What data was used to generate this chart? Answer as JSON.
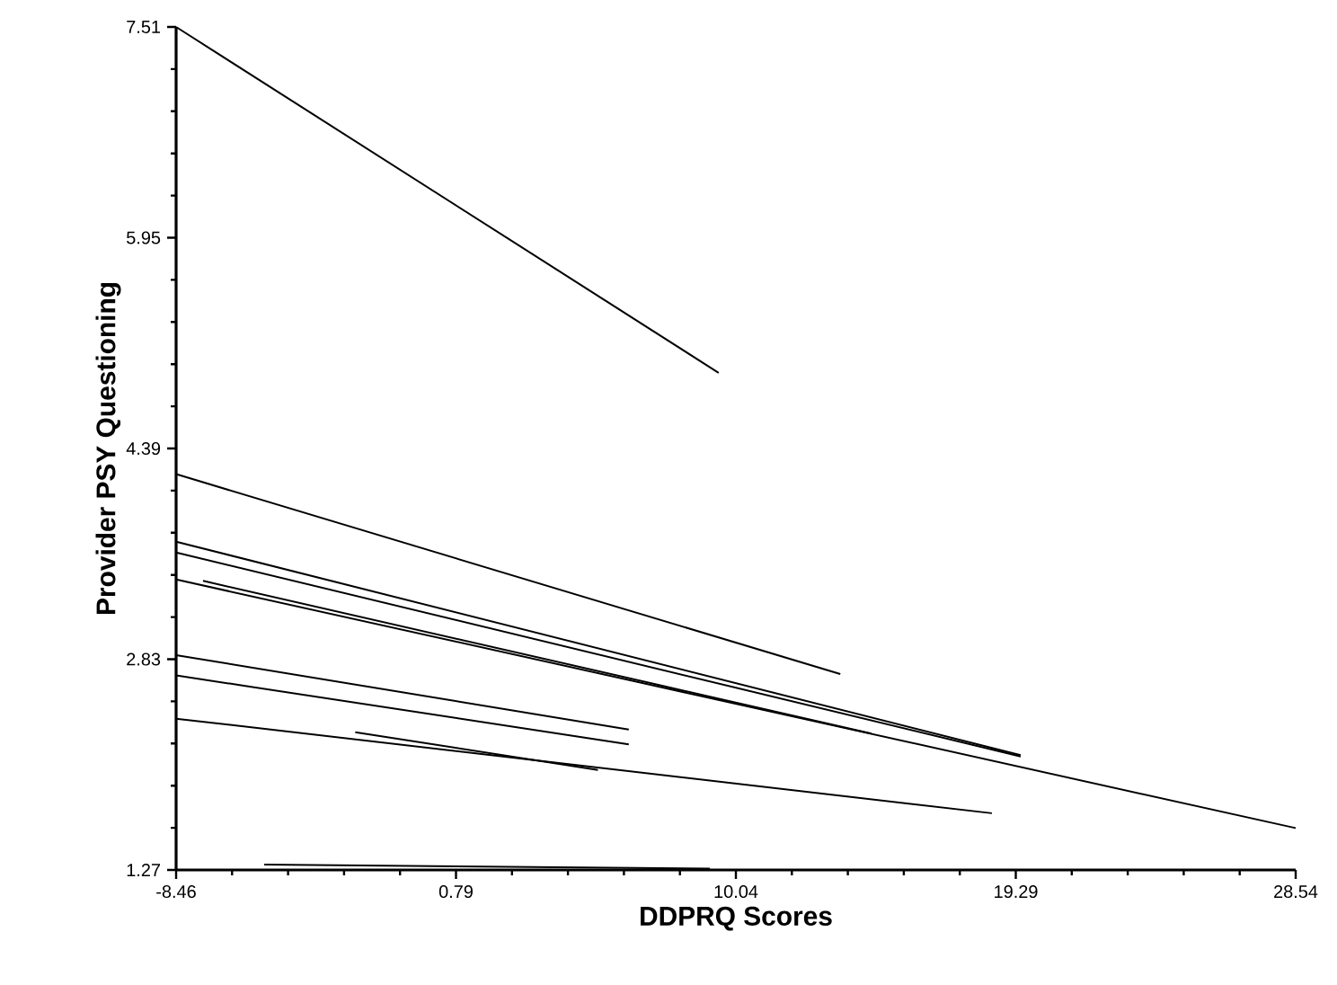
{
  "chart_data": {
    "type": "line",
    "xlabel": "DDPRQ Scores",
    "ylabel": "Provider PSY Questioning",
    "xlim": [
      -8.46,
      28.54
    ],
    "ylim": [
      1.27,
      7.51
    ],
    "xticks": [
      -8.46,
      0.79,
      10.04,
      19.29,
      28.54
    ],
    "yticks": [
      1.27,
      2.83,
      4.39,
      5.95,
      7.51
    ],
    "series": [
      {
        "color": "#000000",
        "x": [
          -8.46,
          9.47
        ],
        "values": [
          7.51,
          4.95
        ]
      },
      {
        "color": "#000000",
        "x": [
          -8.46,
          13.49
        ],
        "values": [
          4.2,
          2.72
        ]
      },
      {
        "color": "#000000",
        "x": [
          -8.46,
          19.45
        ],
        "values": [
          3.7,
          2.12
        ]
      },
      {
        "color": "#000000",
        "x": [
          -8.46,
          19.45
        ],
        "values": [
          3.62,
          2.11
        ]
      },
      {
        "color": "#000000",
        "x": [
          -8.46,
          28.54
        ],
        "values": [
          3.42,
          1.58
        ]
      },
      {
        "color": "#000000",
        "x": [
          -7.57,
          14.52
        ],
        "values": [
          3.41,
          2.28
        ]
      },
      {
        "color": "#000000",
        "x": [
          -8.46,
          6.5
        ],
        "values": [
          2.86,
          2.31
        ]
      },
      {
        "color": "#000000",
        "x": [
          -8.46,
          6.5
        ],
        "values": [
          2.71,
          2.2
        ]
      },
      {
        "color": "#000000",
        "x": [
          -8.46,
          18.5
        ],
        "values": [
          2.39,
          1.69
        ]
      },
      {
        "color": "#000000",
        "x": [
          -2.54,
          5.48
        ],
        "values": [
          2.29,
          2.01
        ]
      },
      {
        "color": "#000000",
        "x": [
          -5.55,
          9.18
        ],
        "values": [
          1.31,
          1.28
        ]
      }
    ]
  }
}
